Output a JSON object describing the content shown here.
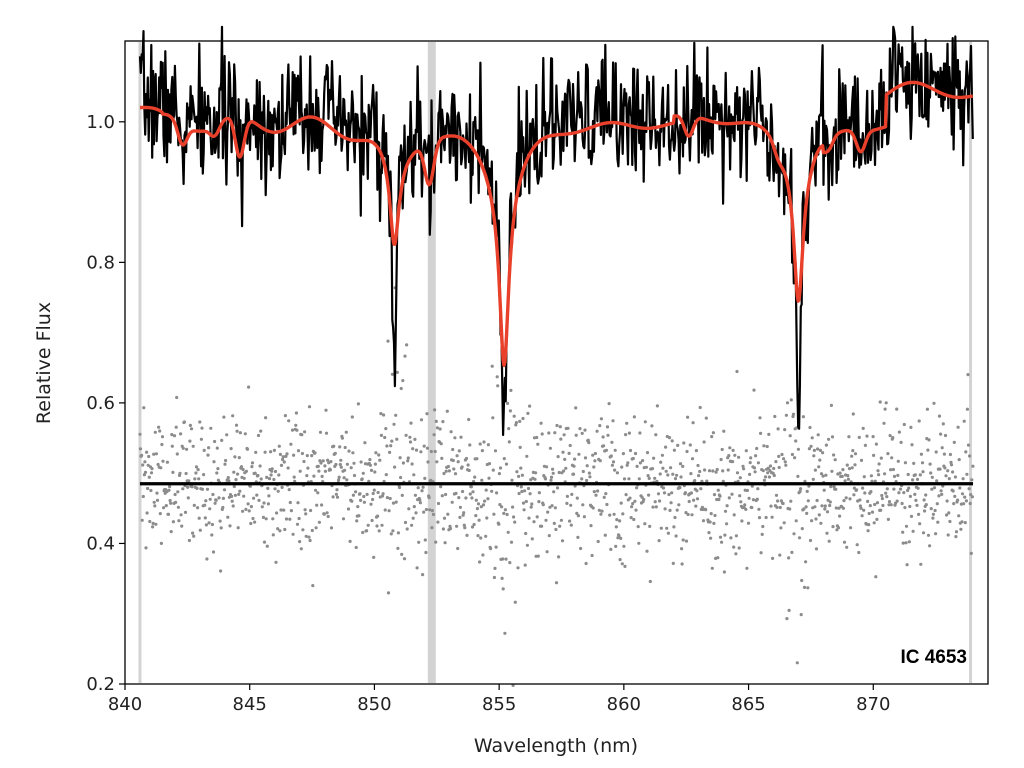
{
  "chart_data": {
    "type": "line",
    "title": "",
    "xlabel": "Wavelength (nm)",
    "ylabel": "Relative Flux",
    "xlim": [
      840.0,
      874.6
    ],
    "ylim": [
      0.2,
      1.115
    ],
    "xticks": [
      840,
      845,
      850,
      855,
      860,
      865,
      870
    ],
    "yticks": [
      0.2,
      0.4,
      0.6,
      0.8,
      1.0
    ],
    "xtick_labels": [
      "840",
      "845",
      "850",
      "855",
      "860",
      "865",
      "870"
    ],
    "ytick_labels": [
      "0.2",
      "0.4",
      "0.6",
      "0.8",
      "1.0"
    ],
    "grid": false,
    "legend": "none",
    "annotation": "IC 4653",
    "masked_regions": [
      840.6,
      852.3,
      873.9
    ],
    "continuum": 1.0,
    "ca_triplet_lines": [
      {
        "center": 850.8,
        "model_depth": 0.82,
        "observed_min": 0.65
      },
      {
        "center": 855.2,
        "model_depth": 0.66,
        "observed_min": 0.56
      },
      {
        "center": 867.0,
        "model_depth": 0.74,
        "observed_min": 0.58
      }
    ],
    "weak_lines": [
      {
        "center": 842.3,
        "depth": 0.98
      },
      {
        "center": 843.6,
        "depth": 0.99
      },
      {
        "center": 844.6,
        "depth": 0.96
      },
      {
        "center": 852.2,
        "depth": 0.96
      },
      {
        "center": 862.6,
        "depth": 0.98
      },
      {
        "center": 866.2,
        "depth": 0.99
      },
      {
        "center": 868.2,
        "depth": 0.99
      },
      {
        "center": 869.5,
        "depth": 0.98
      }
    ],
    "residual_offset": 0.485,
    "residual_scatter": 0.05,
    "series": [
      {
        "name": "Observed spectrum",
        "color": "#000000",
        "x_range": [
          840.6,
          874.0
        ]
      },
      {
        "name": "Model fit",
        "color": "#e8402a",
        "x_range": [
          840.6,
          874.0
        ]
      },
      {
        "name": "Residuals",
        "color": "#8c8c8c",
        "x_range": [
          840.6,
          874.0
        ]
      },
      {
        "name": "Zero line",
        "color": "#000000",
        "value": 0.485
      }
    ]
  }
}
